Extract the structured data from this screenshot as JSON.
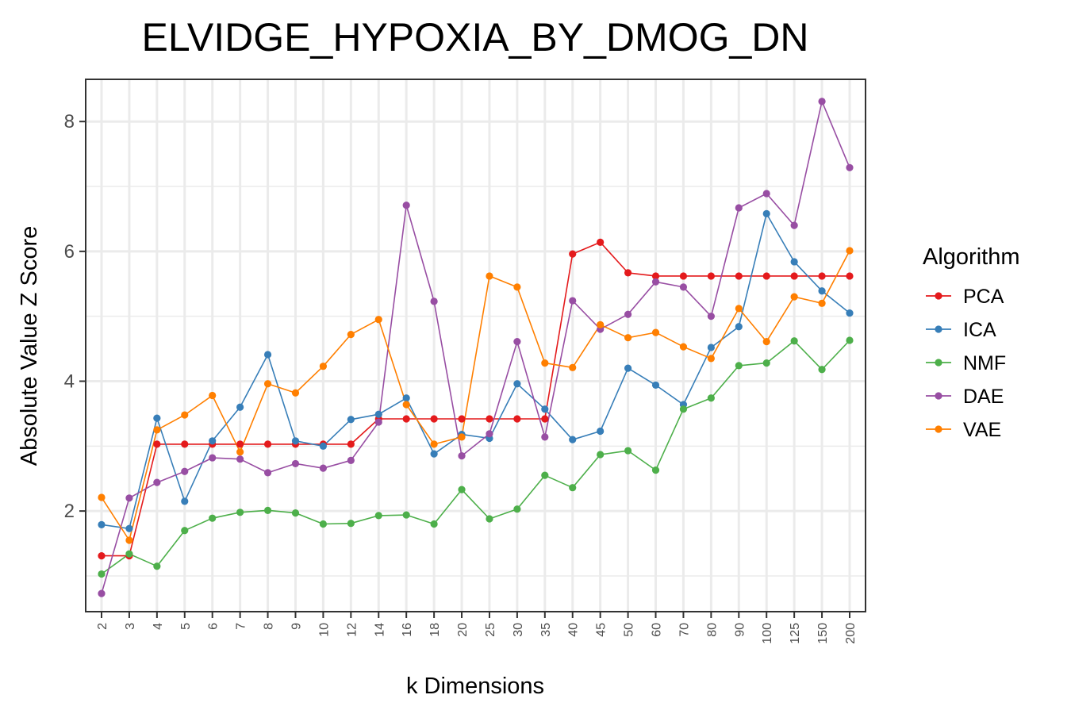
{
  "chart_data": {
    "type": "line",
    "title": "ELVIDGE_HYPOXIA_BY_DMOG_DN",
    "xlabel": "k Dimensions",
    "ylabel": "Absolute Value Z Score",
    "categories": [
      "2",
      "3",
      "4",
      "5",
      "6",
      "7",
      "8",
      "9",
      "10",
      "12",
      "14",
      "16",
      "18",
      "20",
      "25",
      "30",
      "35",
      "40",
      "45",
      "50",
      "60",
      "70",
      "80",
      "90",
      "100",
      "125",
      "150",
      "200"
    ],
    "ylim": [
      0.45,
      8.65
    ],
    "yticks": [
      2,
      4,
      6,
      8
    ],
    "grid": true,
    "legend": {
      "title": "Algorithm",
      "position": "right"
    },
    "series": [
      {
        "name": "PCA",
        "color": "#E41A1C",
        "values": [
          1.31,
          1.31,
          3.03,
          3.03,
          3.03,
          3.03,
          3.03,
          3.03,
          3.03,
          3.03,
          3.42,
          3.42,
          3.42,
          3.42,
          3.42,
          3.42,
          3.42,
          5.96,
          6.14,
          5.67,
          5.62,
          5.62,
          5.62,
          5.62,
          5.62,
          5.62,
          5.62,
          5.62
        ]
      },
      {
        "name": "ICA",
        "color": "#377EB8",
        "values": [
          1.79,
          1.73,
          3.43,
          2.15,
          3.08,
          3.6,
          4.41,
          3.08,
          3.0,
          3.41,
          3.49,
          3.74,
          2.88,
          3.18,
          3.12,
          3.96,
          3.57,
          3.1,
          3.23,
          4.2,
          3.94,
          3.64,
          4.52,
          4.84,
          6.58,
          5.84,
          5.39,
          5.05
        ]
      },
      {
        "name": "NMF",
        "color": "#4DAF4A",
        "values": [
          1.03,
          1.34,
          1.15,
          1.7,
          1.89,
          1.98,
          2.01,
          1.97,
          1.8,
          1.81,
          1.93,
          1.94,
          1.8,
          2.33,
          1.88,
          2.03,
          2.55,
          2.36,
          2.87,
          2.93,
          2.63,
          3.57,
          3.74,
          4.24,
          4.28,
          4.62,
          4.18,
          4.63
        ]
      },
      {
        "name": "DAE",
        "color": "#984EA3",
        "values": [
          0.73,
          2.2,
          2.44,
          2.61,
          2.82,
          2.8,
          2.59,
          2.73,
          2.66,
          2.78,
          3.37,
          6.71,
          5.23,
          2.85,
          3.19,
          4.61,
          3.14,
          5.24,
          4.8,
          5.03,
          5.53,
          5.45,
          5.0,
          6.67,
          6.89,
          6.4,
          8.31,
          7.29
        ]
      },
      {
        "name": "VAE",
        "color": "#FF7F00",
        "values": [
          2.21,
          1.55,
          3.25,
          3.48,
          3.78,
          2.91,
          3.96,
          3.82,
          4.23,
          4.72,
          4.95,
          3.64,
          3.03,
          3.14,
          5.62,
          5.45,
          4.28,
          4.21,
          4.87,
          4.67,
          4.75,
          4.53,
          4.35,
          5.12,
          4.61,
          5.3,
          5.2,
          6.01
        ]
      }
    ]
  }
}
